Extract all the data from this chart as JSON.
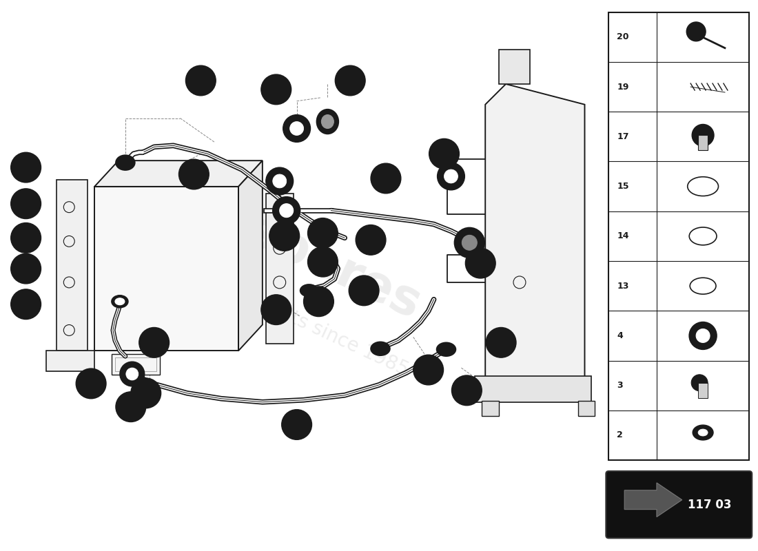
{
  "bg_color": "#ffffff",
  "line_color": "#1a1a1a",
  "dashed_color": "#888888",
  "diagram_code": "117 03",
  "sidebar_items": [
    {
      "id": "20"
    },
    {
      "id": "19"
    },
    {
      "id": "17"
    },
    {
      "id": "15"
    },
    {
      "id": "14"
    },
    {
      "id": "13"
    },
    {
      "id": "4"
    },
    {
      "id": "3"
    },
    {
      "id": "2"
    }
  ]
}
